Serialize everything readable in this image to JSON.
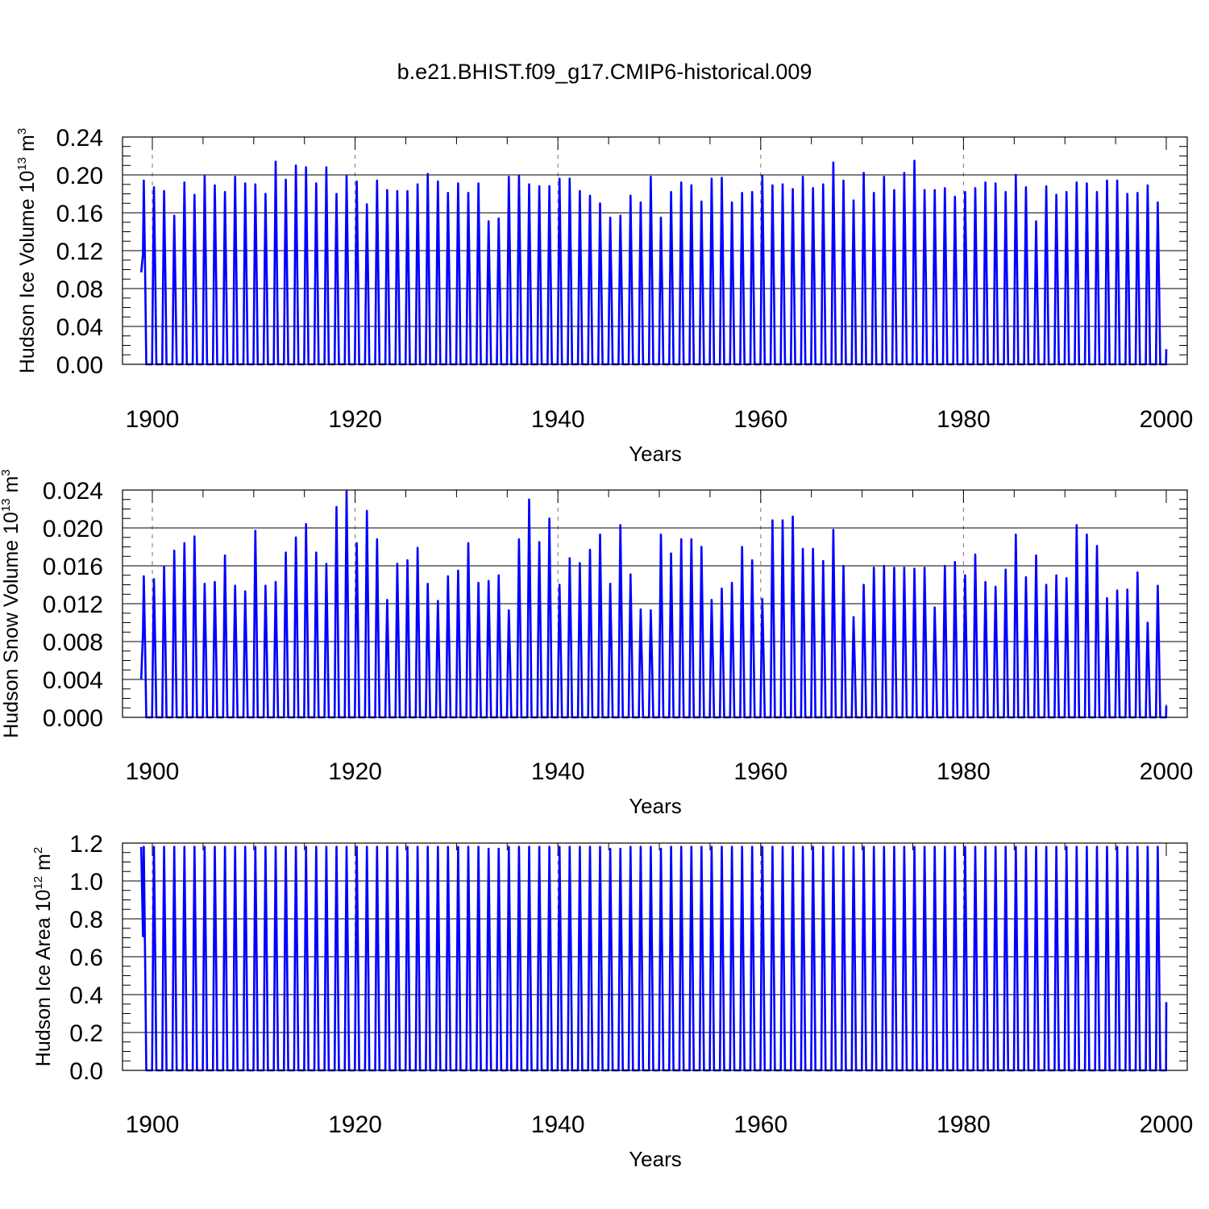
{
  "figure": {
    "title": "b.e21.BHIST.f09_g17.CMIP6-historical.009"
  },
  "colors": {
    "series": "#0000ff",
    "axis": "#000000",
    "grid": "#777777"
  },
  "chart_data": [
    {
      "type": "line",
      "ylabel_main": "Hudson Ice Volume 10",
      "ylabel_exp": "13",
      "ylabel_unit": " m",
      "ylabel_unit_exp": "3",
      "xlabel": "Years",
      "xlim": [
        1898.9,
        2000
      ],
      "ylim": [
        0,
        0.24
      ],
      "yticks": [
        "0.00",
        "0.04",
        "0.08",
        "0.12",
        "0.16",
        "0.20",
        "0.24"
      ],
      "ytick_values": [
        0,
        0.04,
        0.08,
        0.12,
        0.16,
        0.2,
        0.24
      ],
      "xticks": [
        "1900",
        "1920",
        "1940",
        "1960",
        "1980",
        "2000"
      ],
      "xtick_values": [
        1900,
        1920,
        1940,
        1960,
        1980,
        2000
      ],
      "grid_x": [
        1900,
        1920,
        1940,
        1960,
        1980
      ],
      "start": [
        1898.9,
        0.097
      ],
      "end_val": 0.016,
      "annual_min": 0.0,
      "peaks": [
        0.194,
        0.187,
        0.183,
        0.157,
        0.192,
        0.179,
        0.199,
        0.189,
        0.182,
        0.198,
        0.191,
        0.19,
        0.18,
        0.214,
        0.195,
        0.21,
        0.208,
        0.191,
        0.208,
        0.18,
        0.199,
        0.193,
        0.169,
        0.194,
        0.184,
        0.183,
        0.183,
        0.19,
        0.201,
        0.193,
        0.181,
        0.191,
        0.181,
        0.191,
        0.151,
        0.154,
        0.198,
        0.199,
        0.19,
        0.188,
        0.188,
        0.196,
        0.196,
        0.183,
        0.178,
        0.17,
        0.155,
        0.157,
        0.178,
        0.171,
        0.198,
        0.155,
        0.182,
        0.192,
        0.189,
        0.172,
        0.196,
        0.197,
        0.171,
        0.181,
        0.182,
        0.199,
        0.189,
        0.19,
        0.185,
        0.198,
        0.186,
        0.19,
        0.213,
        0.194,
        0.173,
        0.202,
        0.181,
        0.198,
        0.184,
        0.202,
        0.215,
        0.184,
        0.184,
        0.186,
        0.177,
        0.182,
        0.186,
        0.192,
        0.191,
        0.182,
        0.2,
        0.187,
        0.151,
        0.188,
        0.179,
        0.182,
        0.192,
        0.191,
        0.182,
        0.194,
        0.194,
        0.18,
        0.181,
        0.189,
        0.171
      ]
    },
    {
      "type": "line",
      "ylabel_main": "Hudson Snow Volume 10",
      "ylabel_exp": "13",
      "ylabel_unit": " m",
      "ylabel_unit_exp": "3",
      "xlabel": "Years",
      "xlim": [
        1898.9,
        2000
      ],
      "ylim": [
        0,
        0.024
      ],
      "yticks": [
        "0.000",
        "0.004",
        "0.008",
        "0.012",
        "0.016",
        "0.020",
        "0.024"
      ],
      "ytick_values": [
        0,
        0.004,
        0.008,
        0.012,
        0.016,
        0.02,
        0.024
      ],
      "xticks": [
        "1900",
        "1920",
        "1940",
        "1960",
        "1980",
        "2000"
      ],
      "xtick_values": [
        1900,
        1920,
        1940,
        1960,
        1980,
        2000
      ],
      "grid_x": [
        1900,
        1920,
        1940,
        1960,
        1980
      ],
      "start": [
        1898.9,
        0.004
      ],
      "end_val": 0.0012,
      "annual_min": 0.0,
      "peaks": [
        0.0149,
        0.0146,
        0.0159,
        0.0176,
        0.0184,
        0.0191,
        0.0141,
        0.0143,
        0.0171,
        0.0139,
        0.0133,
        0.0197,
        0.0139,
        0.0143,
        0.0174,
        0.019,
        0.0204,
        0.0174,
        0.0162,
        0.0222,
        0.0239,
        0.0184,
        0.0218,
        0.0188,
        0.0124,
        0.0162,
        0.0166,
        0.0179,
        0.0141,
        0.0123,
        0.0149,
        0.0155,
        0.0184,
        0.0142,
        0.0144,
        0.015,
        0.0113,
        0.0188,
        0.023,
        0.0185,
        0.021,
        0.014,
        0.0168,
        0.0163,
        0.0177,
        0.0193,
        0.0141,
        0.0203,
        0.0151,
        0.0114,
        0.0113,
        0.0193,
        0.0173,
        0.0188,
        0.0188,
        0.018,
        0.0124,
        0.0136,
        0.0142,
        0.018,
        0.0166,
        0.0125,
        0.0208,
        0.0208,
        0.0212,
        0.0178,
        0.0178,
        0.0165,
        0.0198,
        0.016,
        0.0106,
        0.014,
        0.0158,
        0.016,
        0.0158,
        0.0158,
        0.0157,
        0.0158,
        0.0116,
        0.016,
        0.0164,
        0.015,
        0.0172,
        0.0143,
        0.0138,
        0.0156,
        0.0193,
        0.0148,
        0.0171,
        0.014,
        0.015,
        0.0147,
        0.0203,
        0.0193,
        0.0181,
        0.0126,
        0.0134,
        0.0135,
        0.0153,
        0.01,
        0.0139
      ]
    },
    {
      "type": "line",
      "ylabel_main": "Hudson Ice Area 10",
      "ylabel_exp": "12",
      "ylabel_unit": " m",
      "ylabel_unit_exp": "2",
      "xlabel": "Years",
      "xlim": [
        1898.9,
        2000
      ],
      "ylim": [
        0,
        1.2
      ],
      "yticks": [
        "0.0",
        "0.2",
        "0.4",
        "0.6",
        "0.8",
        "1.0",
        "1.2"
      ],
      "ytick_values": [
        0,
        0.2,
        0.4,
        0.6,
        0.8,
        1.0,
        1.2
      ],
      "xticks": [
        "1900",
        "1920",
        "1940",
        "1960",
        "1980",
        "2000"
      ],
      "xtick_values": [
        1900,
        1920,
        1940,
        1960,
        1980,
        2000
      ],
      "grid_x": [
        1900,
        1920,
        1940,
        1960,
        1980
      ],
      "start": [
        1898.9,
        1.18
      ],
      "end_val": 0.36,
      "annual_min": 0.0,
      "peaks": [
        1.18,
        1.18,
        1.18,
        1.18,
        1.18,
        1.18,
        1.18,
        1.18,
        1.18,
        1.18,
        1.18,
        1.18,
        1.18,
        1.18,
        1.18,
        1.18,
        1.18,
        1.18,
        1.18,
        1.18,
        1.18,
        1.18,
        1.18,
        1.18,
        1.18,
        1.18,
        1.18,
        1.18,
        1.18,
        1.18,
        1.18,
        1.18,
        1.18,
        1.18,
        1.17,
        1.17,
        1.18,
        1.18,
        1.18,
        1.18,
        1.18,
        1.18,
        1.18,
        1.18,
        1.18,
        1.18,
        1.17,
        1.17,
        1.18,
        1.18,
        1.18,
        1.17,
        1.18,
        1.18,
        1.18,
        1.18,
        1.18,
        1.18,
        1.18,
        1.18,
        1.18,
        1.18,
        1.18,
        1.18,
        1.18,
        1.18,
        1.18,
        1.18,
        1.18,
        1.18,
        1.18,
        1.18,
        1.18,
        1.18,
        1.18,
        1.18,
        1.18,
        1.18,
        1.18,
        1.18,
        1.18,
        1.18,
        1.18,
        1.18,
        1.18,
        1.18,
        1.18,
        1.18,
        1.18,
        1.18,
        1.18,
        1.18,
        1.18,
        1.18,
        1.18,
        1.18,
        1.18,
        1.18,
        1.18,
        1.18,
        1.18
      ]
    }
  ]
}
